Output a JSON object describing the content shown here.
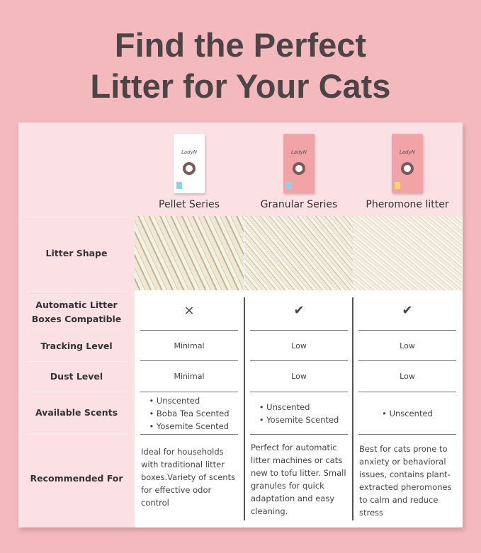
{
  "title": {
    "line1": "Find the Perfect",
    "line2": "Litter for Your Cats"
  },
  "products": [
    {
      "name": "Pellet Series",
      "brand": "LadyN",
      "pack_color": "#ffffff",
      "tag_color": "#8fd0ea"
    },
    {
      "name": "Granular Series",
      "brand": "LadyN",
      "pack_color": "#f2a3a6",
      "tag_color": "#8fd0ea"
    },
    {
      "name": "Pheromone litter",
      "brand": "LadyN",
      "pack_color": "#f2a3a6",
      "tag_color": "#f5d96a"
    }
  ],
  "rows": {
    "litter_shape": "Litter Shape",
    "auto": "Automatic Litter Boxes Compatible",
    "tracking": "Tracking Level",
    "dust": "Dust Level",
    "scents": "Available Scents",
    "recommended": "Recommended For"
  },
  "auto_compatible": [
    "×",
    "✔",
    "✔"
  ],
  "tracking": [
    "Minimal",
    "Low",
    "Low"
  ],
  "dust": [
    "Minimal",
    "Low",
    "Low"
  ],
  "scents": [
    [
      "• Unscented",
      "• Boba Tea Scented",
      "• Yosemite Scented"
    ],
    [
      "• Unscented",
      "• Yosemite Scented"
    ],
    [
      "• Unscented"
    ]
  ],
  "recommended": [
    "Ideal for households with traditional litter boxes.Variety of scents for effective odor control",
    "Perfect for automatic litter machines or cats new to tofu litter. Small granules for quick adaptation and easy cleaning.",
    "Best for cats prone to anxiety or behavioral issues, contains plant-extracted pheromones to calm and reduce stress"
  ]
}
